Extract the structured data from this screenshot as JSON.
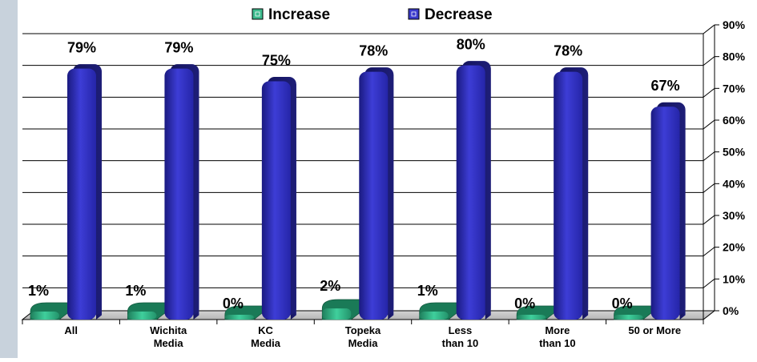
{
  "chart_data": {
    "type": "bar",
    "categories": [
      "All",
      "Wichita\nMedia",
      "KC\nMedia",
      "Topeka\nMedia",
      "Less\nthan 10",
      "More\nthan 10",
      "50 or More"
    ],
    "series": [
      {
        "name": "Increase",
        "values": [
          1,
          1,
          0,
          2,
          1,
          0,
          0
        ],
        "color": "#3dbb8e",
        "value_labels": [
          "1%",
          "1%",
          "0%",
          "2%",
          "1%",
          "0%",
          "0%"
        ]
      },
      {
        "name": "Decrease",
        "values": [
          79,
          79,
          75,
          78,
          80,
          78,
          67
        ],
        "color": "#3a3acc",
        "value_labels": [
          "79%",
          "79%",
          "75%",
          "78%",
          "80%",
          "78%",
          "67%"
        ]
      }
    ],
    "ylim": [
      0,
      90
    ],
    "yticks": [
      0,
      10,
      20,
      30,
      40,
      50,
      60,
      70,
      80,
      90
    ],
    "ytick_labels": [
      "0%",
      "10%",
      "20%",
      "30%",
      "40%",
      "50%",
      "60%",
      "70%",
      "80%",
      "90%"
    ],
    "y_axis_side": "right",
    "grid": true,
    "legend_position": "top",
    "title": "",
    "xlabel": "",
    "ylabel": ""
  }
}
